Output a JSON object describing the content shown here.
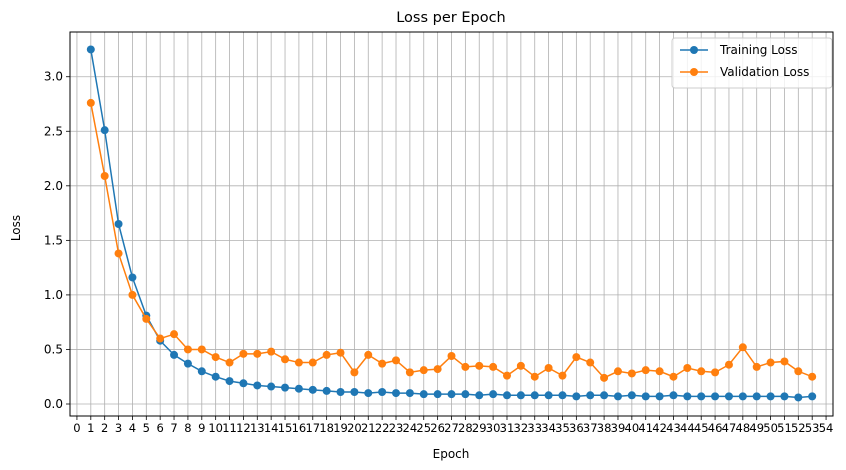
{
  "chart_data": {
    "type": "line",
    "title": "Loss per Epoch",
    "xlabel": "Epoch",
    "ylabel": "Loss",
    "xlim": [
      -0.5,
      54.5
    ],
    "ylim": [
      -0.11,
      3.41
    ],
    "xticks": [
      0,
      1,
      2,
      3,
      4,
      5,
      6,
      7,
      8,
      9,
      10,
      11,
      12,
      13,
      14,
      15,
      16,
      17,
      18,
      19,
      20,
      21,
      22,
      23,
      24,
      25,
      26,
      27,
      28,
      29,
      30,
      31,
      32,
      33,
      34,
      35,
      36,
      37,
      38,
      39,
      40,
      41,
      42,
      43,
      44,
      45,
      46,
      47,
      48,
      49,
      50,
      51,
      52,
      53,
      54
    ],
    "yticks": [
      0.0,
      0.5,
      1.0,
      1.5,
      2.0,
      2.5,
      3.0
    ],
    "ytick_labels": [
      "0.0",
      "0.5",
      "1.0",
      "1.5",
      "2.0",
      "2.5",
      "3.0"
    ],
    "grid": true,
    "legend_position": "top-right",
    "x": [
      1,
      2,
      3,
      4,
      5,
      6,
      7,
      8,
      9,
      10,
      11,
      12,
      13,
      14,
      15,
      16,
      17,
      18,
      19,
      20,
      21,
      22,
      23,
      24,
      25,
      26,
      27,
      28,
      29,
      30,
      31,
      32,
      33,
      34,
      35,
      36,
      37,
      38,
      39,
      40,
      41,
      42,
      43,
      44,
      45,
      46,
      47,
      48,
      49,
      50,
      51,
      52,
      53
    ],
    "series": [
      {
        "name": "Training Loss",
        "color": "#1f77b4",
        "values": [
          3.25,
          2.51,
          1.65,
          1.16,
          0.81,
          0.58,
          0.45,
          0.37,
          0.3,
          0.25,
          0.21,
          0.19,
          0.17,
          0.16,
          0.15,
          0.14,
          0.13,
          0.12,
          0.11,
          0.11,
          0.1,
          0.11,
          0.1,
          0.1,
          0.09,
          0.09,
          0.09,
          0.09,
          0.08,
          0.09,
          0.08,
          0.08,
          0.08,
          0.08,
          0.08,
          0.07,
          0.08,
          0.08,
          0.07,
          0.08,
          0.07,
          0.07,
          0.08,
          0.07,
          0.07,
          0.07,
          0.07,
          0.07,
          0.07,
          0.07,
          0.07,
          0.06,
          0.07
        ]
      },
      {
        "name": "Validation Loss",
        "color": "#ff7f0e",
        "values": [
          2.76,
          2.09,
          1.38,
          1.0,
          0.78,
          0.6,
          0.64,
          0.5,
          0.5,
          0.43,
          0.38,
          0.46,
          0.46,
          0.48,
          0.41,
          0.38,
          0.38,
          0.45,
          0.47,
          0.29,
          0.45,
          0.37,
          0.4,
          0.29,
          0.31,
          0.32,
          0.44,
          0.34,
          0.35,
          0.34,
          0.26,
          0.35,
          0.25,
          0.33,
          0.26,
          0.43,
          0.38,
          0.24,
          0.3,
          0.28,
          0.31,
          0.3,
          0.25,
          0.33,
          0.3,
          0.29,
          0.36,
          0.52,
          0.34,
          0.38,
          0.39,
          0.3,
          0.25
        ]
      }
    ]
  }
}
